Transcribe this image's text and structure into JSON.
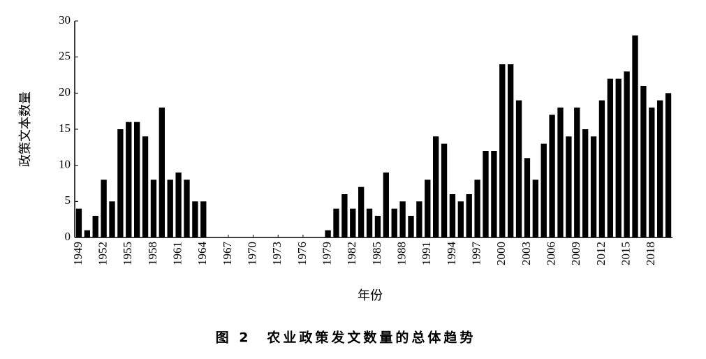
{
  "chart_data": {
    "type": "bar",
    "title": "图 2　农业政策发文数量的总体趋势",
    "xlabel": "年份",
    "ylabel": "政策文本数量",
    "x": [
      1949,
      1950,
      1951,
      1952,
      1953,
      1954,
      1955,
      1956,
      1957,
      1958,
      1959,
      1960,
      1961,
      1962,
      1963,
      1964,
      1965,
      1966,
      1967,
      1968,
      1969,
      1970,
      1971,
      1972,
      1973,
      1974,
      1975,
      1976,
      1977,
      1978,
      1979,
      1980,
      1981,
      1982,
      1983,
      1984,
      1985,
      1986,
      1987,
      1988,
      1989,
      1990,
      1991,
      1992,
      1993,
      1994,
      1995,
      1996,
      1997,
      1998,
      1999,
      2000,
      2001,
      2002,
      2003,
      2004,
      2005,
      2006,
      2007,
      2008,
      2009,
      2010,
      2011,
      2012,
      2013,
      2014,
      2015,
      2016,
      2017,
      2018,
      2019,
      2020
    ],
    "values": [
      4,
      1,
      3,
      8,
      5,
      15,
      16,
      16,
      14,
      8,
      18,
      8,
      9,
      8,
      5,
      5,
      0,
      0,
      0,
      0,
      0,
      0,
      0,
      0,
      0,
      0,
      0,
      0,
      0,
      0,
      1,
      4,
      6,
      4,
      7,
      4,
      3,
      9,
      4,
      5,
      3,
      5,
      8,
      14,
      13,
      6,
      5,
      6,
      8,
      12,
      12,
      24,
      24,
      19,
      11,
      8,
      13,
      17,
      18,
      14,
      18,
      15,
      14,
      19,
      22,
      22,
      23,
      28,
      21,
      18,
      19,
      20
    ],
    "color": "#000000",
    "xlim": [
      1948.5,
      2020.5
    ],
    "xticks": [
      1949,
      1952,
      1955,
      1958,
      1961,
      1964,
      1967,
      1970,
      1973,
      1976,
      1979,
      1982,
      1985,
      1988,
      1991,
      1994,
      1997,
      2000,
      2003,
      2006,
      2009,
      2012,
      2015,
      2018
    ],
    "ylim": [
      0,
      30
    ],
    "yticks": [
      0,
      5,
      10,
      15,
      20,
      25,
      30
    ],
    "grid": false
  }
}
